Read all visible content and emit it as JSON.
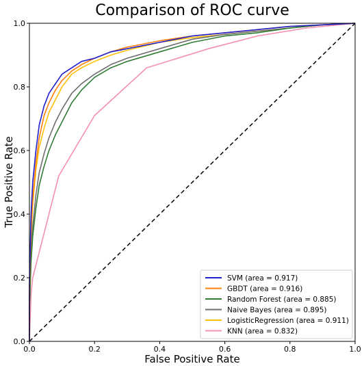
{
  "chart_data": {
    "type": "line",
    "title": "Comparison of ROC curve",
    "xlabel": "False Positive Rate",
    "ylabel": "True Positive Rate",
    "xlim": [
      0,
      1
    ],
    "ylim": [
      0,
      1
    ],
    "xticks": [
      "0.0",
      "0.2",
      "0.4",
      "0.6",
      "0.8",
      "1.0"
    ],
    "yticks": [
      "0.0",
      "0.2",
      "0.4",
      "0.6",
      "0.8",
      "1.0"
    ],
    "grid": false,
    "legend_position": "lower-right",
    "diagonal": {
      "x": [
        0,
        1
      ],
      "y": [
        0,
        1
      ],
      "color": "#000000",
      "style": "dashed"
    },
    "series": [
      {
        "name": "SVM (area = 0.917)",
        "color": "#1f1fcc",
        "points": [
          [
            0,
            0
          ],
          [
            0,
            0.18
          ],
          [
            0.005,
            0.4
          ],
          [
            0.01,
            0.5
          ],
          [
            0.02,
            0.6
          ],
          [
            0.03,
            0.68
          ],
          [
            0.045,
            0.74
          ],
          [
            0.06,
            0.78
          ],
          [
            0.08,
            0.81
          ],
          [
            0.1,
            0.84
          ],
          [
            0.13,
            0.86
          ],
          [
            0.16,
            0.88
          ],
          [
            0.2,
            0.89
          ],
          [
            0.25,
            0.91
          ],
          [
            0.3,
            0.92
          ],
          [
            0.4,
            0.94
          ],
          [
            0.5,
            0.96
          ],
          [
            0.6,
            0.97
          ],
          [
            0.7,
            0.98
          ],
          [
            0.8,
            0.99
          ],
          [
            0.9,
            0.995
          ],
          [
            1,
            1
          ]
        ]
      },
      {
        "name": "GBDT (area = 0.916)",
        "color": "#ff7f0e",
        "points": [
          [
            0,
            0
          ],
          [
            0,
            0.15
          ],
          [
            0.005,
            0.35
          ],
          [
            0.01,
            0.45
          ],
          [
            0.02,
            0.56
          ],
          [
            0.03,
            0.64
          ],
          [
            0.045,
            0.71
          ],
          [
            0.06,
            0.75
          ],
          [
            0.08,
            0.79
          ],
          [
            0.1,
            0.82
          ],
          [
            0.13,
            0.85
          ],
          [
            0.16,
            0.87
          ],
          [
            0.2,
            0.89
          ],
          [
            0.25,
            0.91
          ],
          [
            0.3,
            0.925
          ],
          [
            0.4,
            0.945
          ],
          [
            0.5,
            0.96
          ],
          [
            0.6,
            0.97
          ],
          [
            0.7,
            0.98
          ],
          [
            0.8,
            0.99
          ],
          [
            0.9,
            0.995
          ],
          [
            1,
            1
          ]
        ]
      },
      {
        "name": "Random Forest (area = 0.885)",
        "color": "#2e7d32",
        "points": [
          [
            0,
            0
          ],
          [
            0,
            0.1
          ],
          [
            0.005,
            0.25
          ],
          [
            0.01,
            0.33
          ],
          [
            0.02,
            0.42
          ],
          [
            0.03,
            0.49
          ],
          [
            0.045,
            0.55
          ],
          [
            0.06,
            0.6
          ],
          [
            0.08,
            0.65
          ],
          [
            0.1,
            0.69
          ],
          [
            0.13,
            0.75
          ],
          [
            0.16,
            0.79
          ],
          [
            0.2,
            0.83
          ],
          [
            0.25,
            0.86
          ],
          [
            0.3,
            0.88
          ],
          [
            0.4,
            0.91
          ],
          [
            0.5,
            0.94
          ],
          [
            0.6,
            0.96
          ],
          [
            0.7,
            0.97
          ],
          [
            0.8,
            0.985
          ],
          [
            0.9,
            0.995
          ],
          [
            1,
            1
          ]
        ]
      },
      {
        "name": "Naive Bayes (area = 0.895)",
        "color": "#6e6e6e",
        "points": [
          [
            0,
            0
          ],
          [
            0,
            0.12
          ],
          [
            0.005,
            0.28
          ],
          [
            0.01,
            0.36
          ],
          [
            0.02,
            0.46
          ],
          [
            0.03,
            0.53
          ],
          [
            0.045,
            0.59
          ],
          [
            0.06,
            0.64
          ],
          [
            0.08,
            0.69
          ],
          [
            0.1,
            0.73
          ],
          [
            0.13,
            0.78
          ],
          [
            0.16,
            0.81
          ],
          [
            0.2,
            0.84
          ],
          [
            0.25,
            0.87
          ],
          [
            0.3,
            0.89
          ],
          [
            0.4,
            0.92
          ],
          [
            0.5,
            0.95
          ],
          [
            0.6,
            0.965
          ],
          [
            0.7,
            0.975
          ],
          [
            0.8,
            0.985
          ],
          [
            0.9,
            0.995
          ],
          [
            1,
            1
          ]
        ]
      },
      {
        "name": "LogisticRegression (area = 0.911)",
        "color": "#ffc107",
        "points": [
          [
            0,
            0
          ],
          [
            0,
            0.14
          ],
          [
            0.005,
            0.33
          ],
          [
            0.01,
            0.43
          ],
          [
            0.02,
            0.54
          ],
          [
            0.03,
            0.61
          ],
          [
            0.045,
            0.67
          ],
          [
            0.06,
            0.72
          ],
          [
            0.08,
            0.76
          ],
          [
            0.1,
            0.8
          ],
          [
            0.13,
            0.84
          ],
          [
            0.16,
            0.86
          ],
          [
            0.2,
            0.88
          ],
          [
            0.25,
            0.9
          ],
          [
            0.3,
            0.915
          ],
          [
            0.4,
            0.94
          ],
          [
            0.5,
            0.955
          ],
          [
            0.6,
            0.965
          ],
          [
            0.7,
            0.975
          ],
          [
            0.8,
            0.985
          ],
          [
            0.9,
            0.995
          ],
          [
            1,
            1
          ]
        ]
      },
      {
        "name": "KNN (area = 0.832)",
        "color": "#f48fb1",
        "points": [
          [
            0,
            0
          ],
          [
            0.005,
            0.15
          ],
          [
            0.01,
            0.2
          ],
          [
            0.03,
            0.28
          ],
          [
            0.09,
            0.52
          ],
          [
            0.2,
            0.71
          ],
          [
            0.36,
            0.86
          ],
          [
            0.55,
            0.92
          ],
          [
            0.7,
            0.96
          ],
          [
            0.85,
            0.985
          ],
          [
            1,
            1
          ]
        ]
      }
    ]
  }
}
